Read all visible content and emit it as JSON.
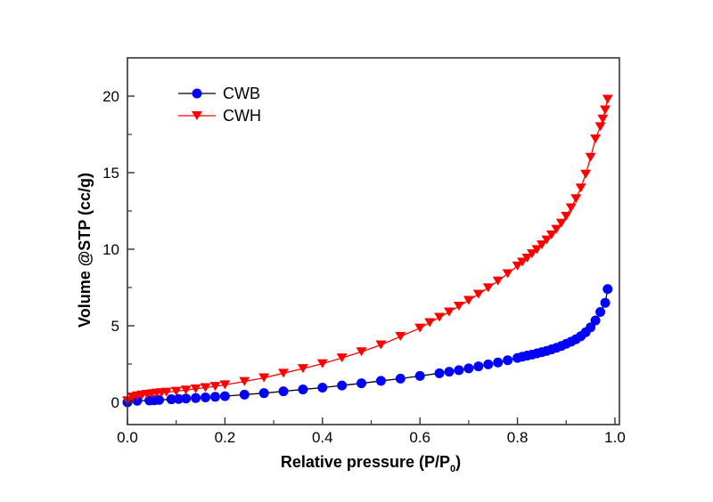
{
  "chart_data": {
    "type": "line",
    "title": "",
    "xlabel": "Relative pressure (P/P",
    "xlabel_sub": "0",
    "xlabel_close": ")",
    "ylabel": "Volume @STP (cc/g)",
    "xlim": [
      0.0,
      1.0
    ],
    "ylim": [
      -1.5,
      22.5
    ],
    "xticks": [
      "0.0",
      "0.2",
      "0.4",
      "0.6",
      "0.8",
      "1.0"
    ],
    "xtick_values": [
      0.0,
      0.2,
      0.4,
      0.6,
      0.8,
      1.0
    ],
    "yticks": [
      "0",
      "5",
      "10",
      "15",
      "20"
    ],
    "ytick_values": [
      0,
      5,
      10,
      15,
      20
    ],
    "grid": false,
    "legend_position": "top-left",
    "series": [
      {
        "name": "CWB",
        "color": "#0000ff",
        "line_color": "#000000",
        "marker": "circle",
        "x": [
          0.0,
          0.02,
          0.045,
          0.055,
          0.065,
          0.09,
          0.105,
          0.12,
          0.14,
          0.16,
          0.18,
          0.2,
          0.24,
          0.28,
          0.32,
          0.36,
          0.4,
          0.44,
          0.48,
          0.52,
          0.56,
          0.6,
          0.64,
          0.66,
          0.68,
          0.7,
          0.72,
          0.74,
          0.76,
          0.78,
          0.8,
          0.81,
          0.82,
          0.83,
          0.84,
          0.85,
          0.86,
          0.87,
          0.88,
          0.89,
          0.9,
          0.91,
          0.92,
          0.93,
          0.94,
          0.95,
          0.96,
          0.97,
          0.98,
          0.985
        ],
        "values": [
          0.0,
          0.1,
          0.12,
          0.13,
          0.15,
          0.2,
          0.22,
          0.25,
          0.28,
          0.32,
          0.36,
          0.4,
          0.5,
          0.6,
          0.72,
          0.84,
          0.96,
          1.1,
          1.24,
          1.4,
          1.55,
          1.72,
          1.9,
          2.0,
          2.1,
          2.22,
          2.35,
          2.48,
          2.6,
          2.75,
          2.9,
          2.98,
          3.05,
          3.12,
          3.2,
          3.28,
          3.36,
          3.46,
          3.56,
          3.68,
          3.82,
          3.96,
          4.12,
          4.32,
          4.58,
          4.9,
          5.35,
          5.9,
          6.5,
          7.4
        ]
      },
      {
        "name": "CWH",
        "color": "#ff0000",
        "line_color": "#ff0000",
        "marker": "triangle-down",
        "x": [
          0.0,
          0.01,
          0.02,
          0.03,
          0.04,
          0.05,
          0.06,
          0.07,
          0.08,
          0.1,
          0.12,
          0.14,
          0.16,
          0.18,
          0.2,
          0.24,
          0.28,
          0.32,
          0.36,
          0.4,
          0.44,
          0.48,
          0.52,
          0.56,
          0.6,
          0.62,
          0.64,
          0.66,
          0.68,
          0.7,
          0.72,
          0.74,
          0.76,
          0.78,
          0.8,
          0.81,
          0.82,
          0.83,
          0.84,
          0.85,
          0.86,
          0.87,
          0.88,
          0.89,
          0.9,
          0.91,
          0.92,
          0.93,
          0.94,
          0.95,
          0.96,
          0.97,
          0.975,
          0.98,
          0.985
        ],
        "values": [
          0.1,
          0.35,
          0.42,
          0.48,
          0.52,
          0.56,
          0.6,
          0.63,
          0.66,
          0.72,
          0.8,
          0.88,
          0.96,
          1.04,
          1.14,
          1.36,
          1.6,
          1.9,
          2.2,
          2.52,
          2.9,
          3.3,
          3.75,
          4.3,
          4.85,
          5.2,
          5.55,
          5.9,
          6.28,
          6.66,
          7.06,
          7.48,
          7.92,
          8.4,
          8.9,
          9.16,
          9.42,
          9.7,
          9.98,
          10.28,
          10.6,
          10.94,
          11.3,
          11.7,
          12.15,
          12.7,
          13.3,
          14.0,
          14.9,
          16.0,
          17.2,
          18.0,
          18.5,
          19.1,
          19.8
        ]
      }
    ]
  }
}
